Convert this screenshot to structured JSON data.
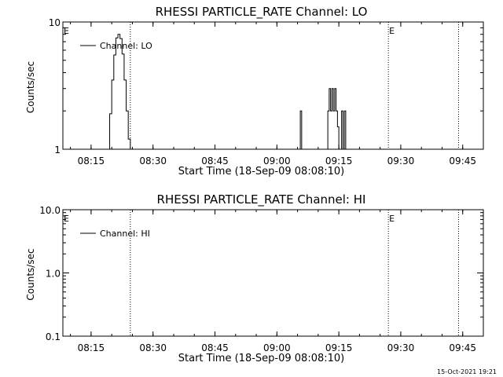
{
  "chart_data": [
    {
      "type": "line",
      "title": "RHESSI PARTICLE_RATE Channel: LO",
      "xlabel": "Start Time (18-Sep-09 08:08:10)",
      "ylabel": "Counts/sec",
      "yscale": "log",
      "ylim": [
        1,
        10
      ],
      "y_ticks": [
        "1",
        "10"
      ],
      "xlim": [
        "08:08:10",
        "09:50:00"
      ],
      "x_ticks": [
        "08:15",
        "08:30",
        "08:45",
        "09:00",
        "09:15",
        "09:30",
        "09:45"
      ],
      "legend": {
        "position": "top-left",
        "entries": [
          "Channel: LO"
        ]
      },
      "markers": [
        {
          "time": "08:08:10",
          "label": "E"
        },
        {
          "time": "08:24:30",
          "label": ""
        },
        {
          "time": "09:27:00",
          "label": "E"
        },
        {
          "time": "09:44:00",
          "label": ""
        }
      ],
      "series": [
        {
          "name": "Channel: LO",
          "x": [
            "08:19:00",
            "08:19:30",
            "08:20:00",
            "08:20:30",
            "08:21:00",
            "08:21:30",
            "08:22:00",
            "08:22:30",
            "08:23:00",
            "08:23:30",
            "08:24:00",
            "08:24:30"
          ],
          "values": [
            1,
            1.9,
            3.5,
            5.5,
            7.5,
            8.0,
            7.4,
            5.6,
            3.5,
            2.0,
            1.2,
            1
          ]
        },
        {
          "name": "Channel: LO",
          "x": [
            "09:05:20",
            "09:05:40",
            "09:06:00"
          ],
          "values": [
            1,
            2,
            1
          ]
        },
        {
          "name": "Channel: LO",
          "x": [
            "09:12:00",
            "09:12:20",
            "09:12:40",
            "09:13:00",
            "09:13:20",
            "09:13:40",
            "09:14:00",
            "09:14:20",
            "09:14:40",
            "09:15:00"
          ],
          "values": [
            1,
            2,
            3,
            2,
            3,
            2,
            3,
            2,
            1.5,
            1
          ]
        },
        {
          "name": "Channel: LO",
          "x": [
            "09:15:20",
            "09:15:40",
            "09:16:00",
            "09:16:20",
            "09:16:40"
          ],
          "values": [
            1,
            2,
            1,
            2,
            1
          ]
        }
      ]
    },
    {
      "type": "line",
      "title": "RHESSI PARTICLE_RATE Channel: HI",
      "xlabel": "Start Time (18-Sep-09 08:08:10)",
      "ylabel": "Counts/sec",
      "yscale": "log",
      "ylim": [
        0.1,
        10
      ],
      "y_ticks": [
        "0.1",
        "1.0",
        "10.0"
      ],
      "xlim": [
        "08:08:10",
        "09:50:00"
      ],
      "x_ticks": [
        "08:15",
        "08:30",
        "08:45",
        "09:00",
        "09:15",
        "09:30",
        "09:45"
      ],
      "legend": {
        "position": "top-left",
        "entries": [
          "Channel: HI"
        ]
      },
      "markers": [
        {
          "time": "08:08:10",
          "label": "E"
        },
        {
          "time": "08:24:30",
          "label": ""
        },
        {
          "time": "09:27:00",
          "label": "E"
        },
        {
          "time": "09:44:00",
          "label": ""
        }
      ],
      "series": []
    }
  ],
  "footer": "15-Oct-2021 19:21"
}
